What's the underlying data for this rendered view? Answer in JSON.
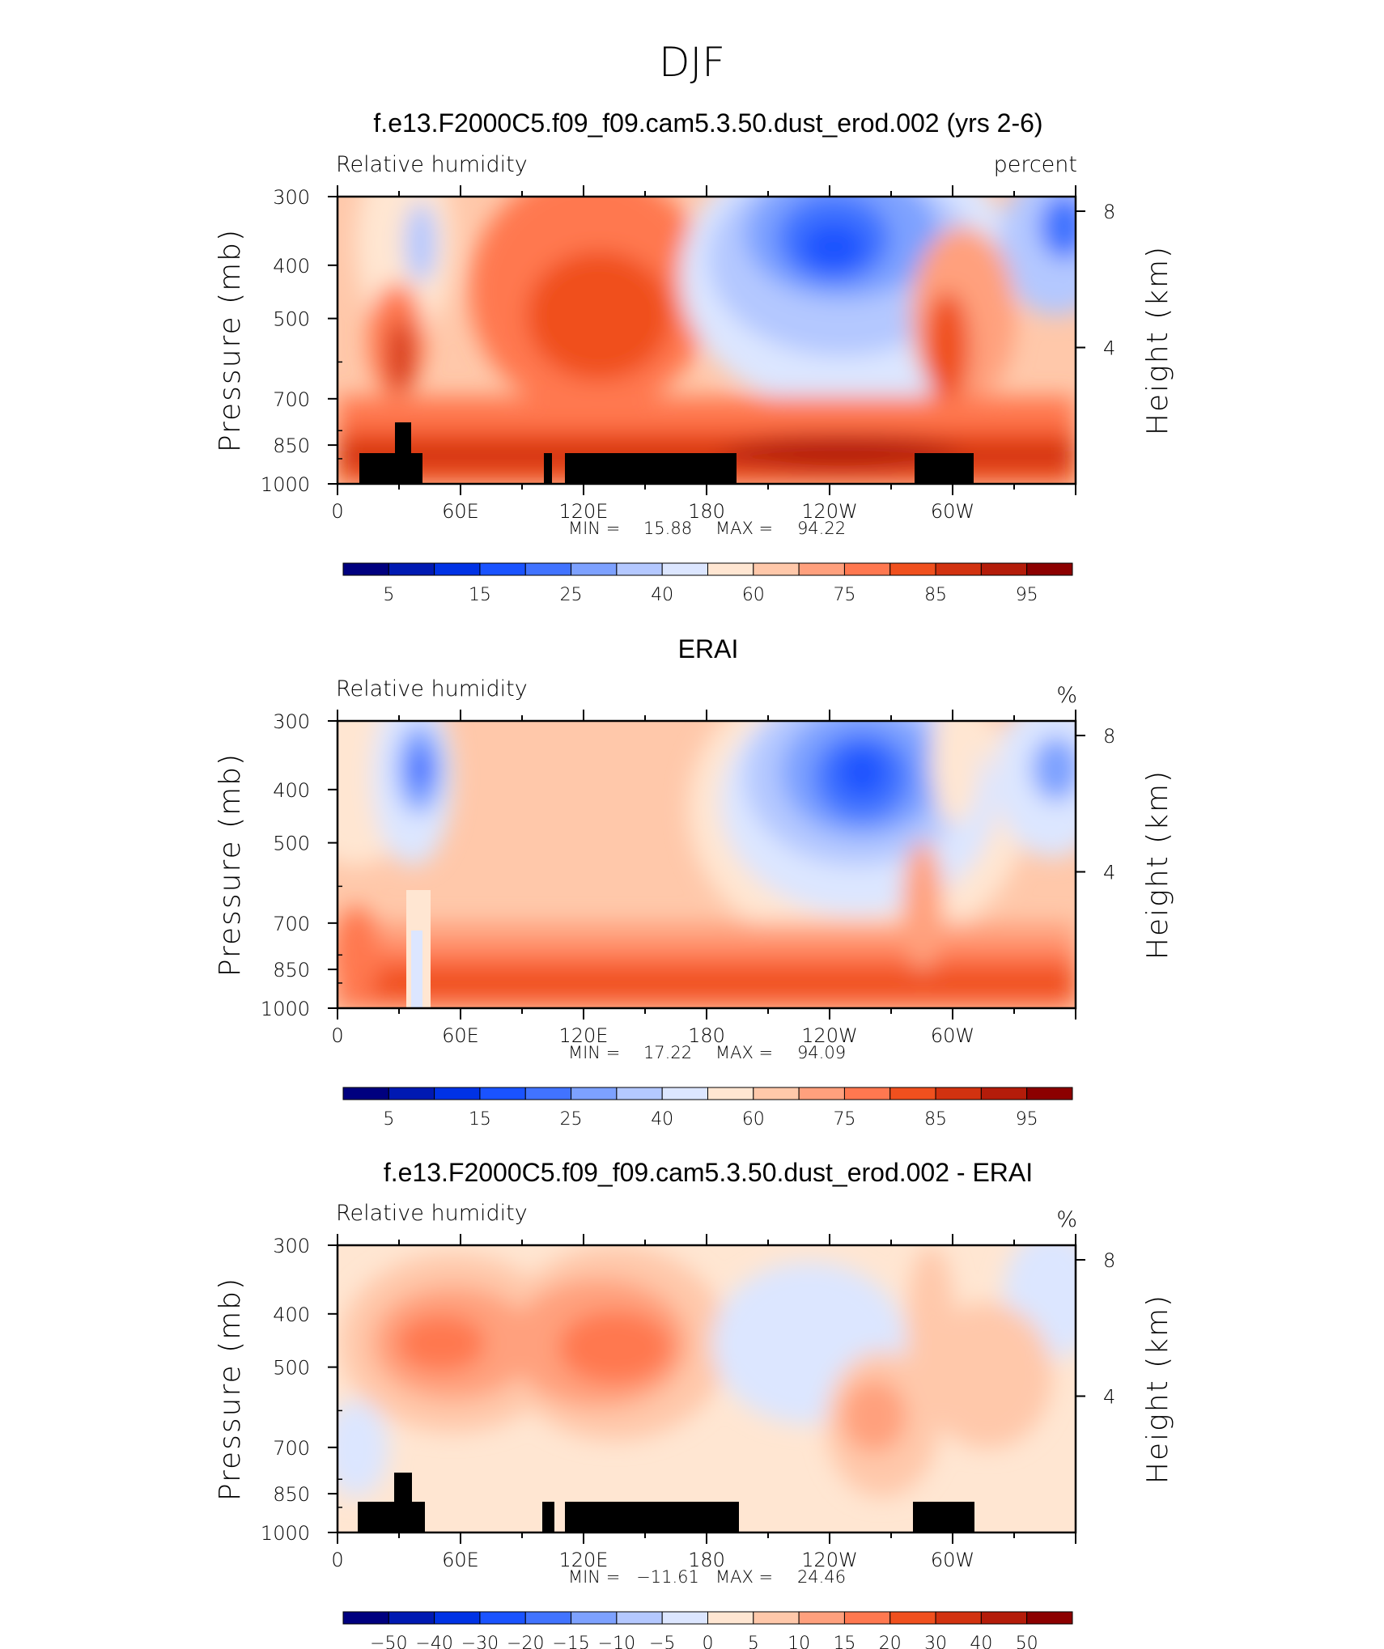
{
  "page_title": "DJF",
  "chart_data": [
    {
      "type": "heatmap",
      "title": "f.e13.F2000C5.f09_f09.cam5.3.50.dust_erod.002 (yrs 2-6)",
      "left_label": "Relative humidity",
      "right_label": "percent",
      "ylabel": "Pressure (mb)",
      "y2label": "Height (km)",
      "x_ticks": [
        "0",
        "60E",
        "120E",
        "180",
        "120W",
        "60W"
      ],
      "y_ticks": [
        "300",
        "400",
        "500",
        "700",
        "850",
        "1000"
      ],
      "y2_ticks": [
        "8",
        "4"
      ],
      "stats": {
        "min_label": "MIN =",
        "min": "15.88",
        "max_label": "MAX =",
        "max": "94.22"
      },
      "colorbar_labels": [
        "5",
        "15",
        "25",
        "40",
        "60",
        "75",
        "85",
        "95"
      ],
      "ylim": [
        1000,
        300
      ],
      "colors": [
        "#00007f",
        "#0019b2",
        "#0032e5",
        "#1a53ff",
        "#4173ff",
        "#7da1ff",
        "#b4c8ff",
        "#dce6ff",
        "#ffe6d2",
        "#ffc8aa",
        "#ffa07d",
        "#ff7850",
        "#f0501e",
        "#d23210",
        "#b41c0a",
        "#8c0000"
      ]
    },
    {
      "type": "heatmap",
      "title": "ERAI",
      "left_label": "Relative humidity",
      "right_label": "%",
      "ylabel": "Pressure (mb)",
      "y2label": "Height (km)",
      "x_ticks": [
        "0",
        "60E",
        "120E",
        "180",
        "120W",
        "60W"
      ],
      "y_ticks": [
        "300",
        "400",
        "500",
        "700",
        "850",
        "1000"
      ],
      "y2_ticks": [
        "8",
        "4"
      ],
      "stats": {
        "min_label": "MIN =",
        "min": "17.22",
        "max_label": "MAX =",
        "max": "94.09"
      },
      "colorbar_labels": [
        "5",
        "15",
        "25",
        "40",
        "60",
        "75",
        "85",
        "95"
      ],
      "ylim": [
        1000,
        300
      ]
    },
    {
      "type": "heatmap",
      "title": "f.e13.F2000C5.f09_f09.cam5.3.50.dust_erod.002 - ERAI",
      "left_label": "Relative humidity",
      "right_label": "%",
      "ylabel": "Pressure (mb)",
      "y2label": "Height (km)",
      "x_ticks": [
        "0",
        "60E",
        "120E",
        "180",
        "120W",
        "60W"
      ],
      "y_ticks": [
        "300",
        "400",
        "500",
        "700",
        "850",
        "1000"
      ],
      "y2_ticks": [
        "8",
        "4"
      ],
      "stats": {
        "min_label": "MIN =",
        "min": "−11.61",
        "max_label": "MAX =",
        "max": "24.46"
      },
      "colorbar_labels": [
        "−50",
        "−40",
        "−30",
        "−20",
        "−15",
        "−10",
        "−5",
        "0",
        "5",
        "10",
        "15",
        "20",
        "30",
        "40",
        "50"
      ],
      "ylim": [
        1000,
        300
      ]
    }
  ]
}
